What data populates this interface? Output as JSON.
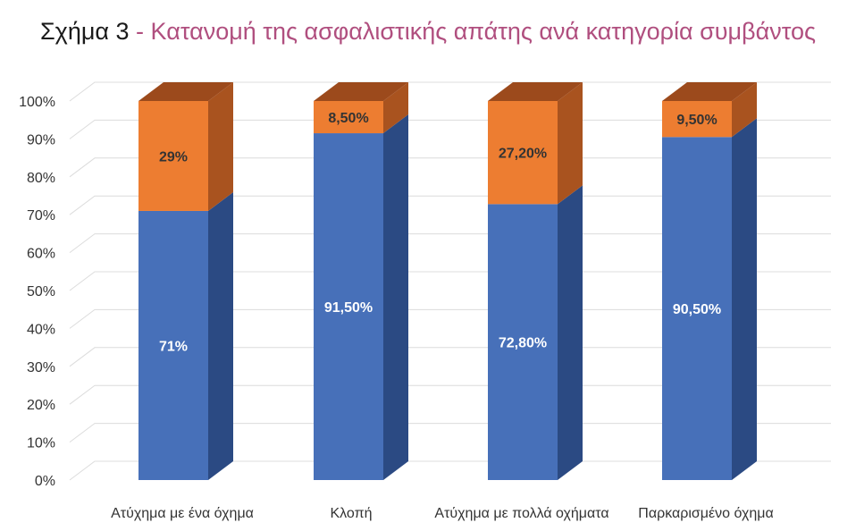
{
  "title": {
    "lead": "Σχήμα 3",
    "rest": " - Κατανομή της ασφαλιστικής απάτης ανά κατηγορία συμβάντος"
  },
  "colors": {
    "bottom": "#4770b9",
    "bottom_side": "#2b4a83",
    "top": "#ed7d31",
    "top_side": "#a9531f",
    "top_cap": "#9c4a1c",
    "grid": "#dcdcdc",
    "title_accent": "#b04f7f"
  },
  "chart_data": {
    "type": "bar",
    "stacked": true,
    "three_d": true,
    "categories": [
      "Ατύχημα με ένα όχημα",
      "Κλοπή",
      "Ατύχημα με πολλά οχήματα",
      "Παρκαρισμένο  όχημα"
    ],
    "series": [
      {
        "values": [
          71,
          91.5,
          72.8,
          90.5
        ],
        "labels": [
          "71%",
          "91,50%",
          "72,80%",
          "90,50%"
        ]
      },
      {
        "values": [
          29,
          8.5,
          27.2,
          9.5
        ],
        "labels": [
          "29%",
          "8,50%",
          "27,20%",
          "9,50%"
        ]
      }
    ],
    "yticks": [
      "0%",
      "10%",
      "20%",
      "30%",
      "40%",
      "50%",
      "60%",
      "70%",
      "80%",
      "90%",
      "100%"
    ],
    "ylim": [
      0,
      100
    ],
    "grid": true,
    "legend": "none"
  }
}
